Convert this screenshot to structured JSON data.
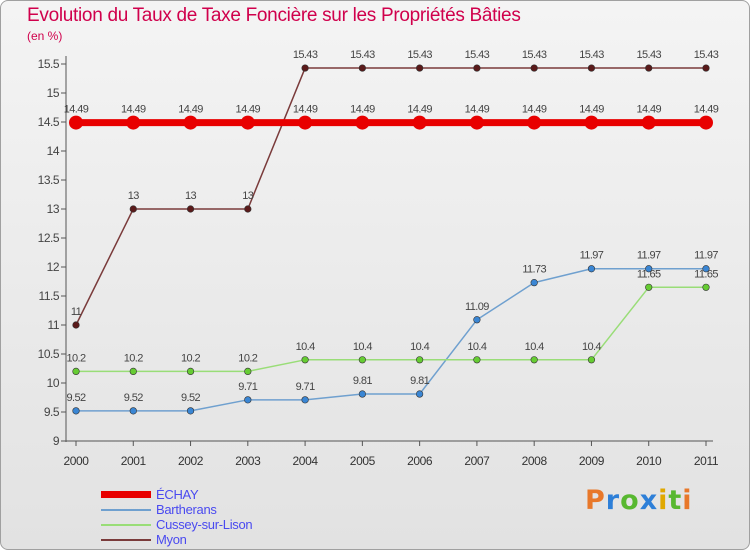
{
  "chart_data": {
    "type": "line",
    "title": "Evolution du Taux de Taxe Foncière sur les Propriétés Bâties",
    "unit_label": "(en %)",
    "x": [
      "2000",
      "2001",
      "2002",
      "2003",
      "2004",
      "2005",
      "2006",
      "2007",
      "2008",
      "2009",
      "2010",
      "2011"
    ],
    "ylim": [
      9,
      15.5
    ],
    "yticks": [
      "9",
      "9.5",
      "10",
      "10.5",
      "11",
      "11.5",
      "12",
      "12.5",
      "13",
      "13.5",
      "14",
      "14.5",
      "15",
      "15.5"
    ],
    "grid": false,
    "series": [
      {
        "name": "ÉCHAY",
        "color": "#e80000",
        "values": [
          14.49,
          14.49,
          14.49,
          14.49,
          14.49,
          14.49,
          14.49,
          14.49,
          14.49,
          14.49,
          14.49,
          14.49
        ],
        "labels": [
          "14.49",
          "14.49",
          "14.49",
          "14.49",
          "14.49",
          "14.49",
          "14.49",
          "14.49",
          "14.49",
          "14.49",
          "14.49",
          "14.49"
        ]
      },
      {
        "name": "Bartherans",
        "color": "#6fa0cf",
        "marker": "#3a86d4",
        "values": [
          9.52,
          9.52,
          9.52,
          9.71,
          9.71,
          9.81,
          9.81,
          11.09,
          11.73,
          11.97,
          11.97,
          11.97
        ],
        "labels": [
          "9.52",
          "9.52",
          "9.52",
          "9.71",
          "9.71",
          "9.81",
          "9.81",
          "11.09",
          "11.73",
          "11.97",
          "11.97",
          "11.97"
        ]
      },
      {
        "name": "Cussey-sur-Lison",
        "color": "#99dd77",
        "marker": "#66cc33",
        "values": [
          10.2,
          10.2,
          10.2,
          10.2,
          10.4,
          10.4,
          10.4,
          10.4,
          10.4,
          10.4,
          11.65,
          11.65
        ],
        "labels": [
          "10.2",
          "10.2",
          "10.2",
          "10.2",
          "10.4",
          "10.4",
          "10.4",
          "10.4",
          "10.4",
          "10.4",
          "11.65",
          "11.65"
        ]
      },
      {
        "name": "Myon",
        "color": "#7a3b3b",
        "marker": "#5a1a1a",
        "values": [
          11,
          13,
          13,
          13,
          15.43,
          15.43,
          15.43,
          15.43,
          15.43,
          15.43,
          15.43,
          15.43
        ],
        "labels": [
          "11",
          "13",
          "13",
          "13",
          "15.43",
          "15.43",
          "15.43",
          "15.43",
          "15.43",
          "15.43",
          "15.43",
          "15.43"
        ]
      }
    ]
  },
  "legend": {
    "items": [
      {
        "label": "ÉCHAY",
        "color": "#e80000"
      },
      {
        "label": "Bartherans",
        "color": "#6fa0cf"
      },
      {
        "label": "Cussey-sur-Lison",
        "color": "#99dd77"
      },
      {
        "label": "Myon",
        "color": "#7a3b3b"
      }
    ]
  },
  "logo": {
    "letters": [
      "P",
      "r",
      "o",
      "x",
      "i",
      "t",
      "i"
    ],
    "colors": [
      "#e8782a",
      "#2d7fd8",
      "#58b830",
      "#2d7fd8",
      "#e0a800",
      "#58b830",
      "#e8782a"
    ]
  }
}
